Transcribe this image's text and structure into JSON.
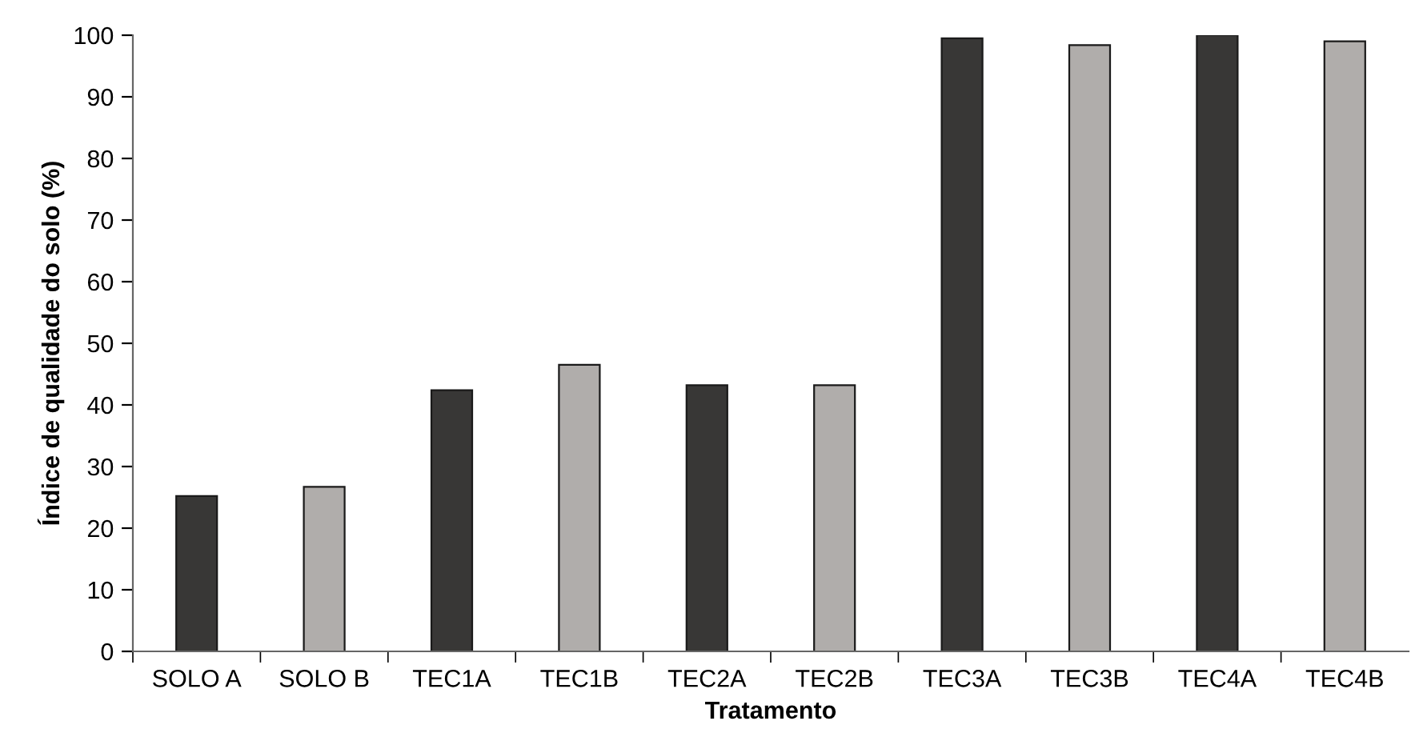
{
  "chart_data": {
    "type": "bar",
    "xlabel": "Tratamento",
    "ylabel": "Índice de qualidade do solo (%)",
    "categories": [
      "SOLO A",
      "SOLO B",
      "TEC1A",
      "TEC1B",
      "TEC2A",
      "TEC2B",
      "TEC3A",
      "TEC3B",
      "TEC4A",
      "TEC4B"
    ],
    "values": [
      25.2,
      26.7,
      42.4,
      46.5,
      43.2,
      43.2,
      99.5,
      98.4,
      100,
      99.0
    ],
    "colors": [
      "#383736",
      "#b0adab",
      "#383736",
      "#b0adab",
      "#383736",
      "#b0adab",
      "#383736",
      "#b0adab",
      "#383736",
      "#b0adab"
    ],
    "ylim": [
      0,
      100
    ],
    "yticks": [
      0,
      10,
      20,
      30,
      40,
      50,
      60,
      70,
      80,
      90,
      100
    ],
    "grid": false,
    "legend": false
  }
}
